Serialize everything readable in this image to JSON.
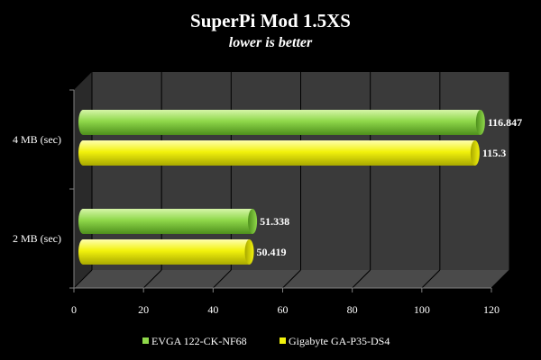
{
  "chart_data": {
    "type": "bar",
    "orientation": "horizontal",
    "title": "SuperPi Mod 1.5XS",
    "subtitle": "lower is better",
    "categories": [
      "4 MB (sec)",
      "2 MB (sec)"
    ],
    "series": [
      {
        "name": "EVGA 122-CK-NF68",
        "values": [
          116.847,
          51.338
        ],
        "labels": [
          "116.847",
          "51.338"
        ],
        "color": "#8fd84a"
      },
      {
        "name": "Gigabyte GA-P35-DS4",
        "values": [
          115.3,
          50.419
        ],
        "labels": [
          "115.3",
          "50.419"
        ],
        "color": "#f2f20c"
      }
    ],
    "xlim": [
      0,
      120
    ],
    "x_ticks": [
      "0",
      "20",
      "40",
      "60",
      "80",
      "100",
      "120"
    ],
    "grid": true,
    "legend_position": "bottom",
    "background": "#000000",
    "plot_background": "#3a3a3a",
    "text_color": "#ffffff"
  }
}
